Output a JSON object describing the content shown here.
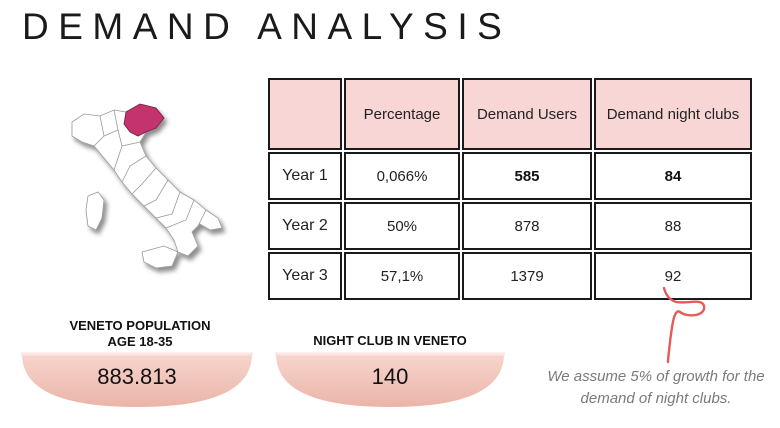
{
  "title": "DEMAND ANALYSIS",
  "table": {
    "headers": [
      "",
      "Percentage",
      "Demand Users",
      "Demand night clubs"
    ],
    "rows": [
      {
        "label": "Year 1",
        "percentage": "0,066%",
        "users": "585",
        "clubs": "84"
      },
      {
        "label": "Year 2",
        "percentage": "50%",
        "users": "878",
        "clubs": "88"
      },
      {
        "label": "Year 3",
        "percentage": "57,1%",
        "users": "1379",
        "clubs": "92"
      }
    ]
  },
  "stats": {
    "population_label": "VENETO POPULATION\nAGE 18-35",
    "population_value": "883.813",
    "clubs_label": "NIGHT CLUB IN VENETO",
    "clubs_value": "140"
  },
  "note": "We assume 5% of growth for the demand of night clubs.",
  "colors": {
    "header_fill": "#f8d6d6",
    "dish_fill": "#f3c9bf",
    "veneto_highlight": "#c2346b",
    "note_text": "#7a7a7a",
    "squiggle": "#e85a5a"
  },
  "icons": {
    "map": "italy-map-icon",
    "squiggle": "hand-drawn-arrow-icon"
  }
}
